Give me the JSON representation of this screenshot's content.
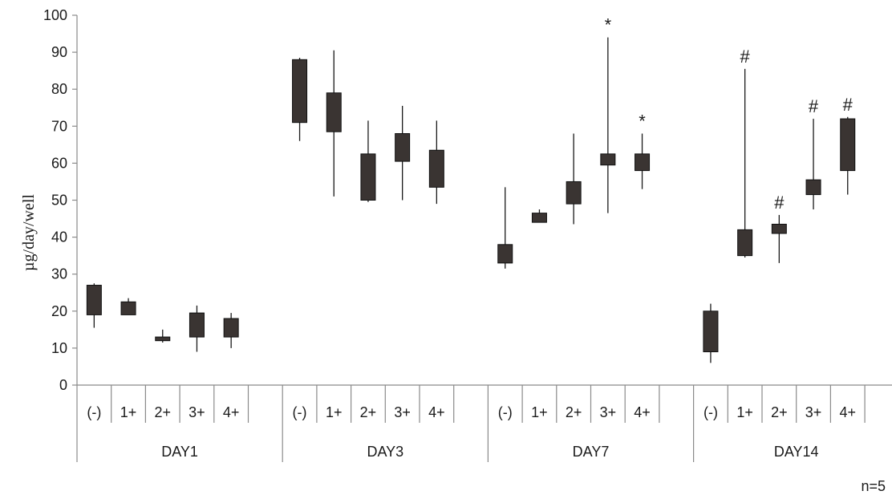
{
  "chart_data": {
    "type": "box",
    "title": "",
    "ylabel": "µg/day/well",
    "xlabel": "",
    "ylim": [
      0,
      100
    ],
    "yticks": [
      0,
      10,
      20,
      30,
      40,
      50,
      60,
      70,
      80,
      90,
      100
    ],
    "grid": false,
    "note": "n=5",
    "categories": [
      "(-)",
      "1+",
      "2+",
      "3+",
      "4+"
    ],
    "groups": [
      {
        "name": "DAY1",
        "boxes": [
          {
            "category": "(-)",
            "low": 15.5,
            "q1": 19,
            "q3": 27,
            "high": 27.5,
            "mark": ""
          },
          {
            "category": "1+",
            "low": 19,
            "q1": 19,
            "q3": 22.5,
            "high": 23.5,
            "mark": ""
          },
          {
            "category": "2+",
            "low": 11.5,
            "q1": 12,
            "q3": 13,
            "high": 15,
            "mark": ""
          },
          {
            "category": "3+",
            "low": 9,
            "q1": 13,
            "q3": 19.5,
            "high": 21.5,
            "mark": ""
          },
          {
            "category": "4+",
            "low": 10,
            "q1": 13,
            "q3": 18,
            "high": 19.5,
            "mark": ""
          }
        ]
      },
      {
        "name": "DAY3",
        "boxes": [
          {
            "category": "(-)",
            "low": 66,
            "q1": 71,
            "q3": 88,
            "high": 88.5,
            "mark": ""
          },
          {
            "category": "1+",
            "low": 51,
            "q1": 68.5,
            "q3": 79,
            "high": 90.5,
            "mark": ""
          },
          {
            "category": "2+",
            "low": 49.5,
            "q1": 50,
            "q3": 62.5,
            "high": 71.5,
            "mark": ""
          },
          {
            "category": "3+",
            "low": 50,
            "q1": 60.5,
            "q3": 68,
            "high": 75.5,
            "mark": ""
          },
          {
            "category": "4+",
            "low": 49,
            "q1": 53.5,
            "q3": 63.5,
            "high": 71.5,
            "mark": ""
          }
        ]
      },
      {
        "name": "DAY7",
        "boxes": [
          {
            "category": "(-)",
            "low": 31.5,
            "q1": 33,
            "q3": 38,
            "high": 53.5,
            "mark": ""
          },
          {
            "category": "1+",
            "low": 44,
            "q1": 44,
            "q3": 46.5,
            "high": 47.5,
            "mark": ""
          },
          {
            "category": "2+",
            "low": 43.5,
            "q1": 49,
            "q3": 55,
            "high": 68,
            "mark": ""
          },
          {
            "category": "3+",
            "low": 46.5,
            "q1": 59.5,
            "q3": 62.5,
            "high": 94,
            "mark": "*"
          },
          {
            "category": "4+",
            "low": 53,
            "q1": 58,
            "q3": 62.5,
            "high": 68,
            "mark": "*"
          }
        ]
      },
      {
        "name": "DAY14",
        "boxes": [
          {
            "category": "(-)",
            "low": 6,
            "q1": 9,
            "q3": 20,
            "high": 22,
            "mark": ""
          },
          {
            "category": "1+",
            "low": 34.5,
            "q1": 35,
            "q3": 42,
            "high": 85.5,
            "mark": "#"
          },
          {
            "category": "2+",
            "low": 33,
            "q1": 41,
            "q3": 43.5,
            "high": 46,
            "mark": "#"
          },
          {
            "category": "3+",
            "low": 47.5,
            "q1": 51.5,
            "q3": 55.5,
            "high": 72,
            "mark": "#"
          },
          {
            "category": "4+",
            "low": 51.5,
            "q1": 58,
            "q3": 72,
            "high": 72.5,
            "mark": "#"
          }
        ]
      }
    ],
    "colors": {
      "box": "#3a3432",
      "line": "#1a1a1a",
      "axis": "#8a8a8a"
    }
  }
}
